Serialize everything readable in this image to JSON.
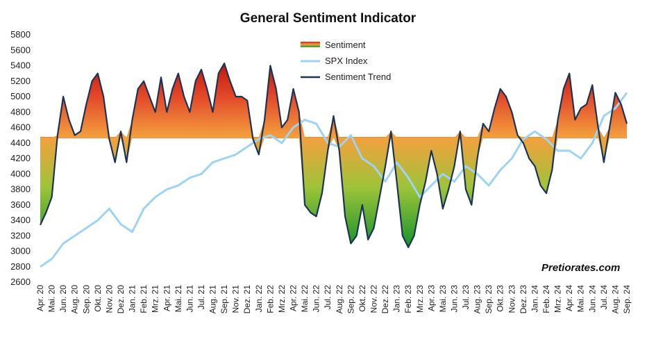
{
  "chart_data": {
    "type": "area",
    "title": "General Sentiment Indicator",
    "xlabel": "",
    "ylabel": "",
    "ylim": [
      2600,
      5800
    ],
    "yticks": [
      2600,
      2800,
      3000,
      3200,
      3400,
      3600,
      3800,
      4000,
      4200,
      4400,
      4600,
      4800,
      5000,
      5200,
      5400,
      5600,
      5800
    ],
    "xticks": [
      "Apr. 20",
      "Mai. 20",
      "Jun. 20",
      "Aug. 20",
      "Sep. 20",
      "Okt. 20",
      "Nov. 20",
      "Dez. 20",
      "Jan. 21",
      "Feb. 21",
      "Mrz. 21",
      "Apr. 21",
      "Mai. 21",
      "Jun. 21",
      "Jul. 21",
      "Aug. 21",
      "Sep. 21",
      "Nov. 21",
      "Dez. 21",
      "Jan. 22",
      "Feb. 22",
      "Mrz. 22",
      "Apr. 22",
      "Mai. 22",
      "Jun. 22",
      "Jul. 22",
      "Aug. 22",
      "Sep. 22",
      "Okt. 22",
      "Nov. 22",
      "Dez. 22",
      "Jan. 23",
      "Feb. 23",
      "Mrz. 23",
      "Apr. 23",
      "Mai. 23",
      "Jun. 23",
      "Jul. 23",
      "Aug. 23",
      "Sep. 23",
      "Okt. 23",
      "Nov. 23",
      "Dez. 23",
      "Jan. 24",
      "Feb. 24",
      "Mrz. 24",
      "Apr. 24",
      "Mai. 24",
      "Jun. 24",
      "Jul. 24",
      "Aug. 24",
      "Sep. 24"
    ],
    "baseline": 4470,
    "legend": {
      "placement": "top-center",
      "entries": [
        "Sentiment",
        "SPX Index",
        "Sentiment Trend"
      ]
    },
    "colors": {
      "positive_top": "#cc1a0e",
      "positive_bottom": "#f39a3c",
      "negative_top": "#f39a3c",
      "negative_bottom": "#1e9e2a",
      "spx": "#9fd3f2",
      "trend": "#1b3355"
    },
    "series": [
      {
        "name": "Sentiment Trend",
        "x": [
          0,
          1,
          2,
          3,
          4,
          5,
          6,
          7,
          8,
          9,
          10,
          11,
          12,
          13,
          14,
          15,
          16,
          17,
          18,
          19,
          20,
          21,
          22,
          23,
          24,
          25,
          26,
          27,
          28,
          29,
          30,
          31,
          32,
          33,
          34,
          35,
          36,
          37,
          38,
          39,
          40,
          41,
          42,
          43,
          44,
          45,
          46,
          47,
          48,
          49,
          50,
          51,
          52,
          53,
          54,
          55,
          56,
          57,
          58,
          59,
          60,
          61,
          62,
          63,
          64,
          65,
          66,
          67,
          68,
          69,
          70,
          71,
          72,
          73,
          74,
          75,
          76,
          77,
          78,
          79,
          80,
          81,
          82,
          83,
          84,
          85,
          86,
          87,
          88,
          89,
          90,
          91,
          92,
          93,
          94,
          95,
          96,
          97,
          98,
          99,
          100,
          101,
          102
        ],
        "values": [
          3340,
          3500,
          3700,
          4500,
          5000,
          4700,
          4500,
          4550,
          4900,
          5200,
          5300,
          5000,
          4450,
          4150,
          4550,
          4150,
          4700,
          5100,
          5200,
          5000,
          4800,
          5250,
          4800,
          5100,
          5300,
          5000,
          4800,
          5200,
          5350,
          5100,
          4800,
          5300,
          5430,
          5200,
          5000,
          5000,
          4950,
          4450,
          4250,
          4700,
          5400,
          5100,
          4600,
          4700,
          5100,
          4800,
          3600,
          3500,
          3450,
          3750,
          4300,
          4750,
          4300,
          3450,
          3100,
          3200,
          3600,
          3150,
          3300,
          3700,
          4100,
          4550,
          3900,
          3200,
          3050,
          3200,
          3600,
          3900,
          4300,
          4000,
          3550,
          3800,
          4100,
          4550,
          3800,
          3600,
          4200,
          4650,
          4550,
          4850,
          5100,
          5000,
          4800,
          4500,
          4400,
          4200,
          4100,
          3850,
          3750,
          4050,
          4700,
          5100,
          5300,
          4700,
          4850,
          4900,
          5150,
          4600,
          4150,
          4600,
          5050,
          4900,
          4650
        ]
      },
      {
        "name": "SPX Index",
        "x": [
          0,
          2,
          4,
          6,
          8,
          10,
          12,
          14,
          16,
          18,
          20,
          22,
          24,
          26,
          28,
          30,
          32,
          34,
          36,
          38,
          40,
          42,
          44,
          46,
          48,
          50,
          52,
          54,
          56,
          58,
          60,
          62,
          64,
          66,
          68,
          70,
          72,
          74,
          76,
          78,
          80,
          82,
          84,
          86,
          88,
          90,
          92,
          94,
          96,
          98,
          100,
          101,
          102
        ],
        "values": [
          2800,
          2900,
          3100,
          3200,
          3300,
          3400,
          3550,
          3350,
          3250,
          3550,
          3700,
          3800,
          3850,
          3950,
          4000,
          4150,
          4200,
          4250,
          4350,
          4450,
          4500,
          4400,
          4600,
          4700,
          4650,
          4400,
          4350,
          4500,
          4200,
          4100,
          3900,
          4150,
          3950,
          3700,
          3850,
          4000,
          3900,
          4100,
          4000,
          3850,
          4050,
          4200,
          4450,
          4550,
          4450,
          4300,
          4300,
          4200,
          4400,
          4750,
          4850,
          4950,
          5050
        ]
      }
    ],
    "watermark": "Pretiorates.com"
  }
}
